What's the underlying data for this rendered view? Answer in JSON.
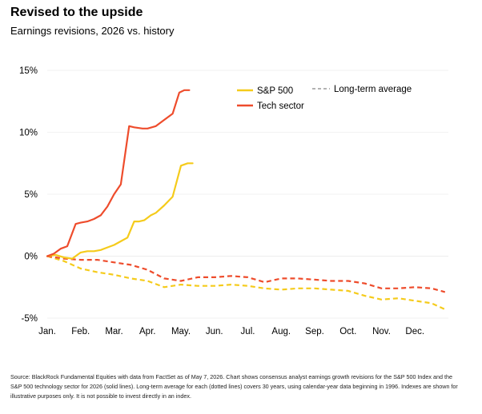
{
  "title": "Revised to the upside",
  "subtitle": "Earnings revisions, 2026 vs. history",
  "footnote": "Source: BlackRock Fundamental Equities with data from FactSet as of May 7, 2026. Chart shows consensus analyst earnings growth revisions for the S&P 500 Index and the S&P 500 technology sector for 2026 (solid lines). Long-term average for each (dotted lines) covers 30 years, using calendar-year data beginning in 1996. Indexes are shown for illustrative purposes only. It is not possible to invest directly in an index.",
  "colors": {
    "sp500": "#f5cb1b",
    "tech": "#ee4c2c",
    "grid": "#e6e6e6"
  },
  "chart_data": {
    "type": "line",
    "x_unit": "month (Jan = 0, Dec end = 12)",
    "xlim": [
      0,
      12
    ],
    "ylim": [
      -5,
      15
    ],
    "y_ticks": [
      15,
      10,
      5,
      0,
      -5
    ],
    "y_tick_labels": [
      "15%",
      "10%",
      "5%",
      "0%",
      "-5%"
    ],
    "x_ticks": [
      0,
      1,
      2,
      3,
      4,
      5,
      6,
      7,
      8,
      9,
      10,
      11
    ],
    "x_tick_labels": [
      "Jan.",
      "Feb.",
      "Mar.",
      "Apr.",
      "May.",
      "Jun.",
      "Jul.",
      "Aug.",
      "Sep.",
      "Oct.",
      "Nov.",
      "Dec."
    ],
    "legend": {
      "sp500": "S&P 500",
      "tech": "Tech sector",
      "longterm": "Long-term average"
    },
    "series": [
      {
        "name": "S&P 500",
        "style": "solid",
        "color_key": "sp500",
        "x": [
          0,
          0.25,
          0.5,
          0.75,
          0.9,
          1.0,
          1.2,
          1.4,
          1.6,
          1.8,
          2.0,
          2.2,
          2.4,
          2.6,
          2.75,
          2.9,
          3.1,
          3.25,
          3.5,
          3.75,
          4.0,
          4.2,
          4.35
        ],
        "values": [
          0,
          0.1,
          -0.1,
          -0.2,
          0.1,
          0.3,
          0.4,
          0.4,
          0.5,
          0.7,
          0.9,
          1.2,
          1.5,
          2.8,
          2.8,
          2.9,
          3.3,
          3.5,
          4.1,
          4.8,
          7.3,
          7.5,
          7.5
        ]
      },
      {
        "name": "Tech sector",
        "style": "solid",
        "color_key": "tech",
        "x": [
          0,
          0.2,
          0.4,
          0.6,
          0.85,
          1.0,
          1.2,
          1.4,
          1.6,
          1.8,
          2.0,
          2.2,
          2.45,
          2.6,
          2.85,
          3.0,
          3.25,
          3.5,
          3.75,
          3.95,
          4.1,
          4.25
        ],
        "values": [
          0,
          0.2,
          0.6,
          0.8,
          2.6,
          2.7,
          2.8,
          3.0,
          3.3,
          4.0,
          5.0,
          5.8,
          10.5,
          10.4,
          10.3,
          10.3,
          10.5,
          11.0,
          11.5,
          13.2,
          13.4,
          13.4
        ]
      },
      {
        "name": "S&P 500 long-term average",
        "style": "dashed",
        "color_key": "sp500",
        "x": [
          0,
          0.5,
          1,
          1.5,
          2,
          2.5,
          3,
          3.5,
          4,
          4.5,
          5,
          5.5,
          6,
          6.5,
          7,
          7.5,
          8,
          8.5,
          9,
          9.5,
          10,
          10.5,
          11,
          11.5,
          11.9
        ],
        "values": [
          0,
          -0.4,
          -1.0,
          -1.3,
          -1.5,
          -1.8,
          -2.0,
          -2.5,
          -2.3,
          -2.4,
          -2.4,
          -2.3,
          -2.4,
          -2.6,
          -2.7,
          -2.6,
          -2.6,
          -2.7,
          -2.8,
          -3.2,
          -3.5,
          -3.4,
          -3.6,
          -3.8,
          -4.3
        ]
      },
      {
        "name": "Tech sector long-term average",
        "style": "dashed",
        "color_key": "tech",
        "x": [
          0,
          0.5,
          1,
          1.5,
          2,
          2.5,
          3,
          3.5,
          4,
          4.5,
          5,
          5.5,
          6,
          6.5,
          7,
          7.5,
          8,
          8.5,
          9,
          9.5,
          10,
          10.5,
          11,
          11.5,
          11.9
        ],
        "values": [
          0,
          -0.2,
          -0.3,
          -0.3,
          -0.5,
          -0.7,
          -1.1,
          -1.8,
          -2.0,
          -1.7,
          -1.7,
          -1.6,
          -1.7,
          -2.1,
          -1.8,
          -1.8,
          -1.9,
          -2.0,
          -2.0,
          -2.2,
          -2.6,
          -2.6,
          -2.5,
          -2.6,
          -2.9
        ]
      }
    ]
  }
}
